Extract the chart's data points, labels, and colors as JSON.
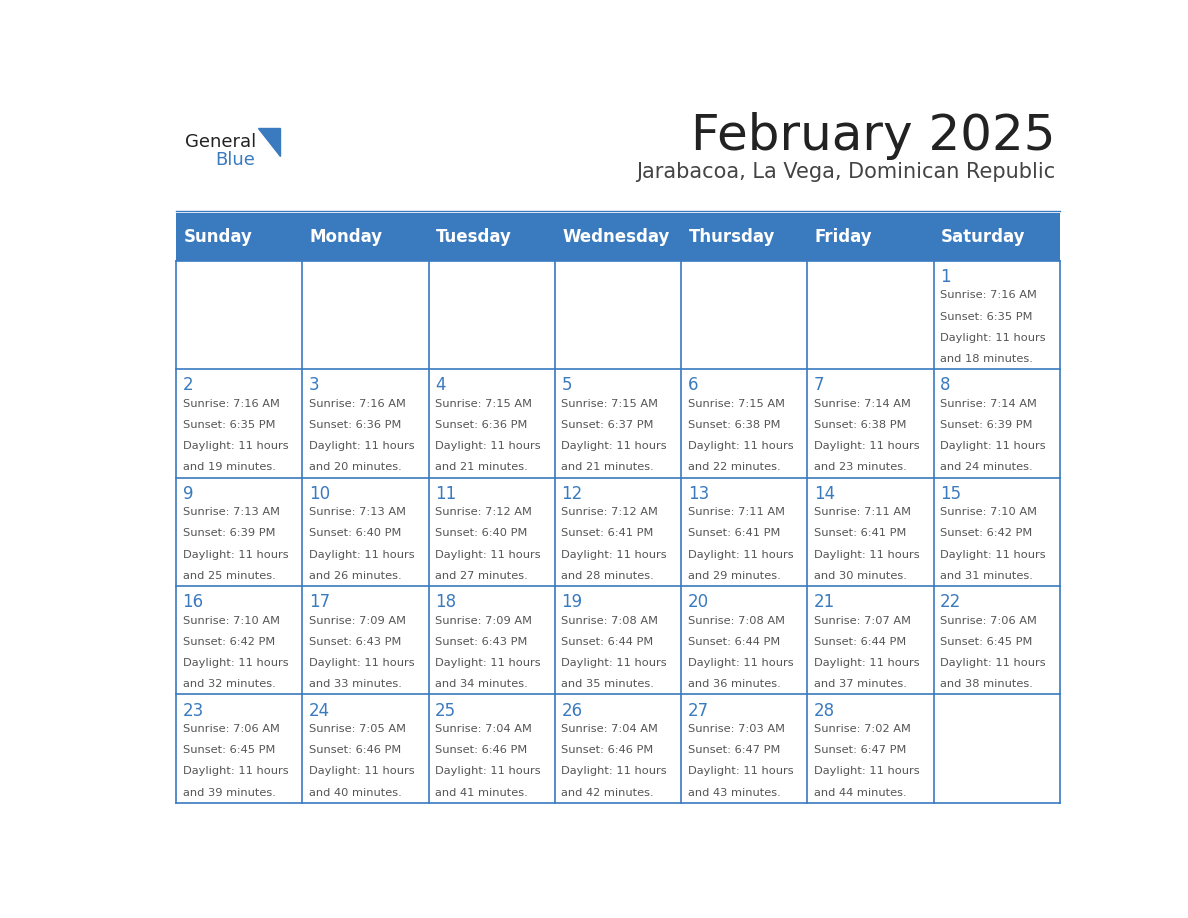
{
  "title": "February 2025",
  "subtitle": "Jarabacoa, La Vega, Dominican Republic",
  "header_bg_color": "#3a7abf",
  "header_text_color": "#ffffff",
  "day_names": [
    "Sunday",
    "Monday",
    "Tuesday",
    "Wednesday",
    "Thursday",
    "Friday",
    "Saturday"
  ],
  "grid_line_color": "#3a7abf",
  "cell_bg_color": "#ffffff",
  "day_number_color": "#3a7abf",
  "info_text_color": "#555555",
  "title_color": "#222222",
  "subtitle_color": "#444444",
  "generalblue_text_color": "#222222",
  "generalblue_blue_color": "#3a7abf",
  "days": [
    {
      "day": 1,
      "col": 6,
      "row": 0,
      "sunrise": "7:16 AM",
      "sunset": "6:35 PM",
      "daylight_hours": 11,
      "daylight_minutes": 18
    },
    {
      "day": 2,
      "col": 0,
      "row": 1,
      "sunrise": "7:16 AM",
      "sunset": "6:35 PM",
      "daylight_hours": 11,
      "daylight_minutes": 19
    },
    {
      "day": 3,
      "col": 1,
      "row": 1,
      "sunrise": "7:16 AM",
      "sunset": "6:36 PM",
      "daylight_hours": 11,
      "daylight_minutes": 20
    },
    {
      "day": 4,
      "col": 2,
      "row": 1,
      "sunrise": "7:15 AM",
      "sunset": "6:36 PM",
      "daylight_hours": 11,
      "daylight_minutes": 21
    },
    {
      "day": 5,
      "col": 3,
      "row": 1,
      "sunrise": "7:15 AM",
      "sunset": "6:37 PM",
      "daylight_hours": 11,
      "daylight_minutes": 21
    },
    {
      "day": 6,
      "col": 4,
      "row": 1,
      "sunrise": "7:15 AM",
      "sunset": "6:38 PM",
      "daylight_hours": 11,
      "daylight_minutes": 22
    },
    {
      "day": 7,
      "col": 5,
      "row": 1,
      "sunrise": "7:14 AM",
      "sunset": "6:38 PM",
      "daylight_hours": 11,
      "daylight_minutes": 23
    },
    {
      "day": 8,
      "col": 6,
      "row": 1,
      "sunrise": "7:14 AM",
      "sunset": "6:39 PM",
      "daylight_hours": 11,
      "daylight_minutes": 24
    },
    {
      "day": 9,
      "col": 0,
      "row": 2,
      "sunrise": "7:13 AM",
      "sunset": "6:39 PM",
      "daylight_hours": 11,
      "daylight_minutes": 25
    },
    {
      "day": 10,
      "col": 1,
      "row": 2,
      "sunrise": "7:13 AM",
      "sunset": "6:40 PM",
      "daylight_hours": 11,
      "daylight_minutes": 26
    },
    {
      "day": 11,
      "col": 2,
      "row": 2,
      "sunrise": "7:12 AM",
      "sunset": "6:40 PM",
      "daylight_hours": 11,
      "daylight_minutes": 27
    },
    {
      "day": 12,
      "col": 3,
      "row": 2,
      "sunrise": "7:12 AM",
      "sunset": "6:41 PM",
      "daylight_hours": 11,
      "daylight_minutes": 28
    },
    {
      "day": 13,
      "col": 4,
      "row": 2,
      "sunrise": "7:11 AM",
      "sunset": "6:41 PM",
      "daylight_hours": 11,
      "daylight_minutes": 29
    },
    {
      "day": 14,
      "col": 5,
      "row": 2,
      "sunrise": "7:11 AM",
      "sunset": "6:41 PM",
      "daylight_hours": 11,
      "daylight_minutes": 30
    },
    {
      "day": 15,
      "col": 6,
      "row": 2,
      "sunrise": "7:10 AM",
      "sunset": "6:42 PM",
      "daylight_hours": 11,
      "daylight_minutes": 31
    },
    {
      "day": 16,
      "col": 0,
      "row": 3,
      "sunrise": "7:10 AM",
      "sunset": "6:42 PM",
      "daylight_hours": 11,
      "daylight_minutes": 32
    },
    {
      "day": 17,
      "col": 1,
      "row": 3,
      "sunrise": "7:09 AM",
      "sunset": "6:43 PM",
      "daylight_hours": 11,
      "daylight_minutes": 33
    },
    {
      "day": 18,
      "col": 2,
      "row": 3,
      "sunrise": "7:09 AM",
      "sunset": "6:43 PM",
      "daylight_hours": 11,
      "daylight_minutes": 34
    },
    {
      "day": 19,
      "col": 3,
      "row": 3,
      "sunrise": "7:08 AM",
      "sunset": "6:44 PM",
      "daylight_hours": 11,
      "daylight_minutes": 35
    },
    {
      "day": 20,
      "col": 4,
      "row": 3,
      "sunrise": "7:08 AM",
      "sunset": "6:44 PM",
      "daylight_hours": 11,
      "daylight_minutes": 36
    },
    {
      "day": 21,
      "col": 5,
      "row": 3,
      "sunrise": "7:07 AM",
      "sunset": "6:44 PM",
      "daylight_hours": 11,
      "daylight_minutes": 37
    },
    {
      "day": 22,
      "col": 6,
      "row": 3,
      "sunrise": "7:06 AM",
      "sunset": "6:45 PM",
      "daylight_hours": 11,
      "daylight_minutes": 38
    },
    {
      "day": 23,
      "col": 0,
      "row": 4,
      "sunrise": "7:06 AM",
      "sunset": "6:45 PM",
      "daylight_hours": 11,
      "daylight_minutes": 39
    },
    {
      "day": 24,
      "col": 1,
      "row": 4,
      "sunrise": "7:05 AM",
      "sunset": "6:46 PM",
      "daylight_hours": 11,
      "daylight_minutes": 40
    },
    {
      "day": 25,
      "col": 2,
      "row": 4,
      "sunrise": "7:04 AM",
      "sunset": "6:46 PM",
      "daylight_hours": 11,
      "daylight_minutes": 41
    },
    {
      "day": 26,
      "col": 3,
      "row": 4,
      "sunrise": "7:04 AM",
      "sunset": "6:46 PM",
      "daylight_hours": 11,
      "daylight_minutes": 42
    },
    {
      "day": 27,
      "col": 4,
      "row": 4,
      "sunrise": "7:03 AM",
      "sunset": "6:47 PM",
      "daylight_hours": 11,
      "daylight_minutes": 43
    },
    {
      "day": 28,
      "col": 5,
      "row": 4,
      "sunrise": "7:02 AM",
      "sunset": "6:47 PM",
      "daylight_hours": 11,
      "daylight_minutes": 44
    }
  ]
}
